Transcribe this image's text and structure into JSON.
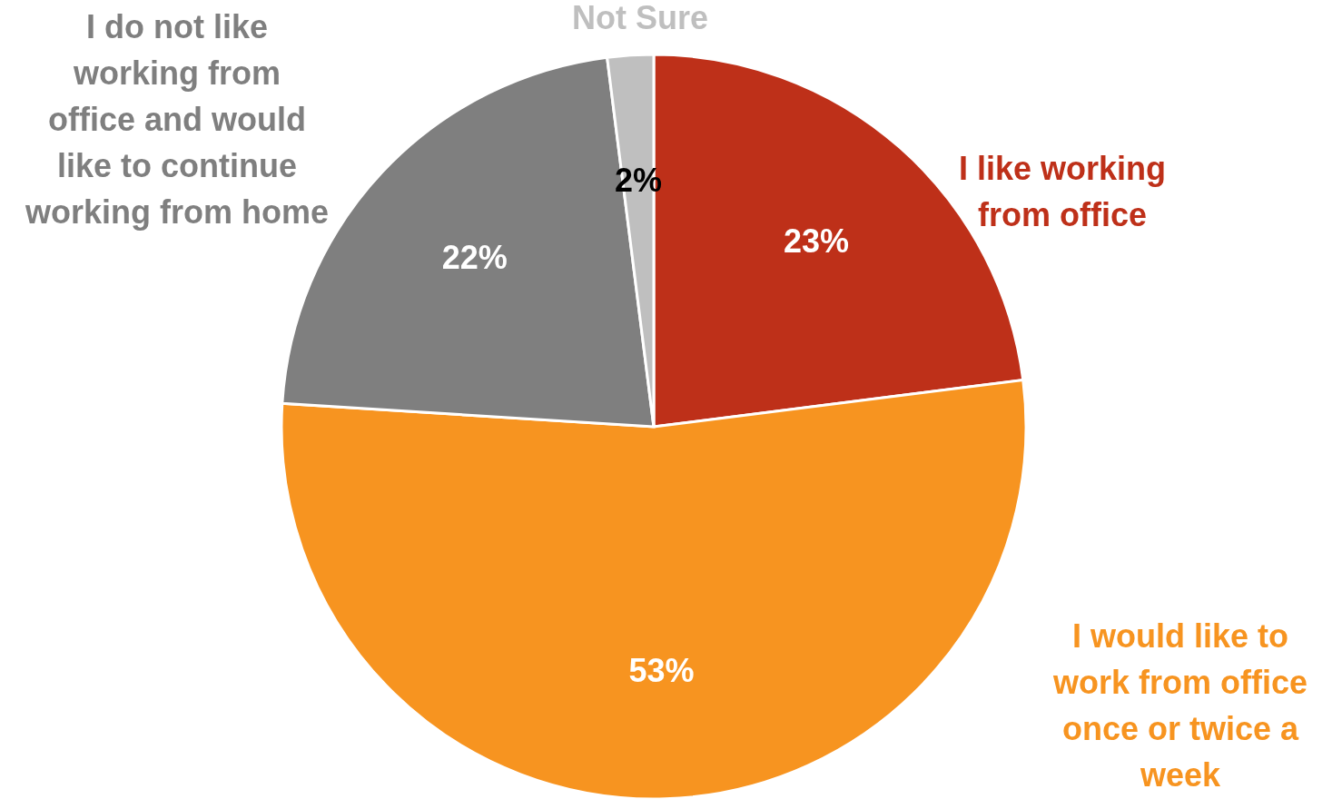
{
  "chart_data": {
    "type": "pie",
    "categories": [
      "I like working from office",
      "I would like to work from office once or twice a week",
      "I do not like working from office and would like to continue working from home",
      "Not Sure"
    ],
    "values": [
      23,
      53,
      22,
      2
    ],
    "colors": [
      "#be3019",
      "#f79420",
      "#7f7f7f",
      "#bfbfbf"
    ],
    "value_labels": [
      "23%",
      "53%",
      "22%",
      "2%"
    ]
  }
}
